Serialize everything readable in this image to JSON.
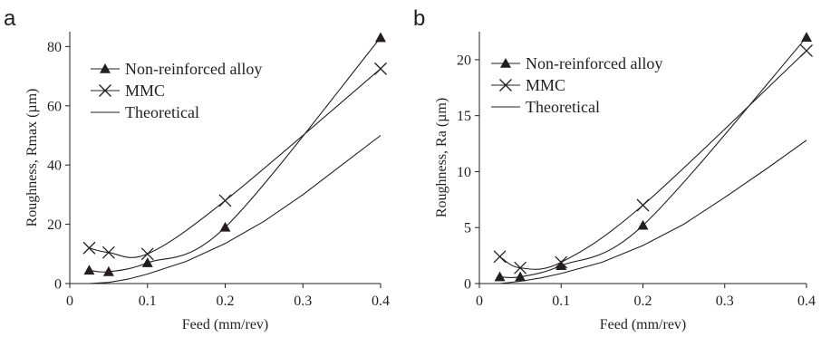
{
  "chart_data": [
    {
      "panel_label": "a",
      "type": "line",
      "xlabel": "Feed (mm/rev)",
      "ylabel": "Roughness, Rmax (µm)",
      "xlim": [
        0,
        0.4
      ],
      "ylim": [
        0,
        85
      ],
      "xticks": [
        "0",
        "0.1",
        "0.2",
        "0.3",
        "0.4"
      ],
      "xtick_values": [
        0,
        0.1,
        0.2,
        0.3,
        0.4
      ],
      "yticks": [
        "0",
        "20",
        "40",
        "60",
        "80"
      ],
      "ytick_values": [
        0,
        20,
        40,
        60,
        80
      ],
      "legend_position": "top-left",
      "series": [
        {
          "name": "Non-reinforced alloy",
          "marker": "triangle",
          "x": [
            0.025,
            0.05,
            0.1,
            0.2,
            0.4
          ],
          "y": [
            4.5,
            4,
            7,
            19,
            83
          ]
        },
        {
          "name": "MMC",
          "marker": "x",
          "x": [
            0.025,
            0.05,
            0.1,
            0.2,
            0.4
          ],
          "y": [
            12,
            10.5,
            10,
            28,
            72.5
          ]
        },
        {
          "name": "Theoretical",
          "marker": "none",
          "x": [
            0.025,
            0.05,
            0.075,
            0.1,
            0.15,
            0.2,
            0.25,
            0.3,
            0.35,
            0.4
          ],
          "y": [
            0,
            0.4,
            1.5,
            3.2,
            7.5,
            13.5,
            21,
            30,
            40,
            50
          ]
        }
      ]
    },
    {
      "panel_label": "b",
      "type": "line",
      "xlabel": "Feed (mm/rev)",
      "ylabel": "Roughness, Ra (µm)",
      "xlim": [
        0,
        0.4
      ],
      "ylim": [
        0,
        22.5
      ],
      "xticks": [
        "0",
        "0.1",
        "0.2",
        "0.3",
        "0.4"
      ],
      "xtick_values": [
        0,
        0.1,
        0.2,
        0.3,
        0.4
      ],
      "yticks": [
        "0",
        "5",
        "10",
        "15",
        "20"
      ],
      "ytick_values": [
        0,
        5,
        10,
        15,
        20
      ],
      "legend_position": "top-left",
      "series": [
        {
          "name": "Non-reinforced alloy",
          "marker": "triangle",
          "x": [
            0.025,
            0.05,
            0.1,
            0.2,
            0.4
          ],
          "y": [
            0.6,
            0.6,
            1.6,
            5.2,
            22
          ]
        },
        {
          "name": "MMC",
          "marker": "x",
          "x": [
            0.025,
            0.05,
            0.1,
            0.2,
            0.4
          ],
          "y": [
            2.4,
            1.4,
            1.9,
            7,
            20.8
          ]
        },
        {
          "name": "Theoretical",
          "marker": "none",
          "x": [
            0.025,
            0.05,
            0.075,
            0.1,
            0.15,
            0.2,
            0.25,
            0.3,
            0.35,
            0.4
          ],
          "y": [
            0,
            0.2,
            0.5,
            0.9,
            1.9,
            3.4,
            5.3,
            7.7,
            10.2,
            12.8
          ]
        }
      ]
    }
  ]
}
